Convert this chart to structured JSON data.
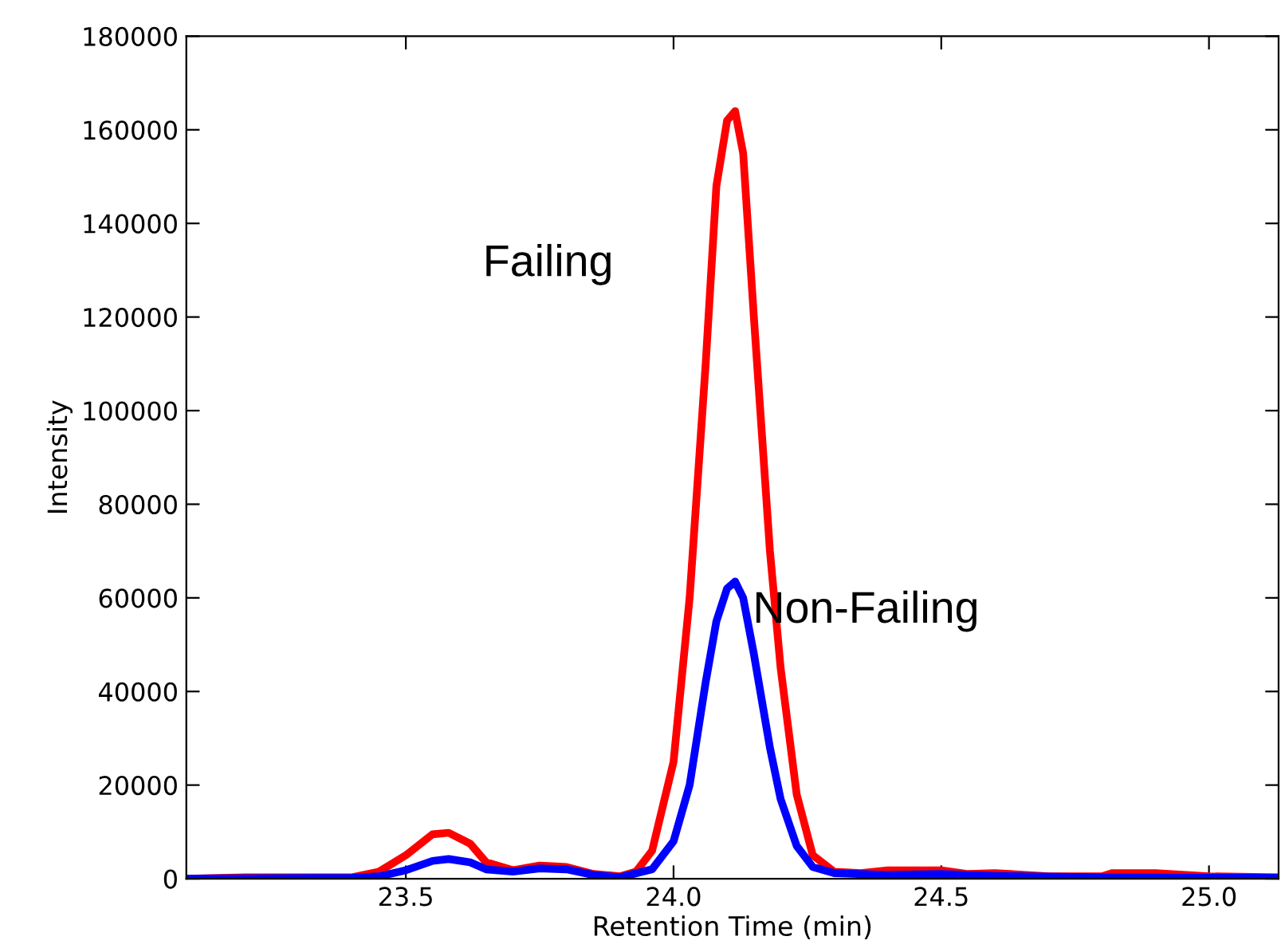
{
  "chart_data": {
    "type": "line",
    "xlabel": "Retention Time (min)",
    "ylabel": "Intensity",
    "xlim": [
      23.09,
      25.13
    ],
    "ylim": [
      0,
      180000
    ],
    "xticks": [
      23.5,
      {
        "value": 24.0,
        "label": "24.0"
      },
      24.5,
      {
        "value": 25.0,
        "label": "25.0"
      }
    ],
    "yticks": [
      0,
      20000,
      40000,
      60000,
      80000,
      100000,
      120000,
      140000,
      160000,
      180000
    ],
    "grid": false,
    "legend": false,
    "marker": "none",
    "line_style": "solid",
    "series": [
      {
        "name": "Failing",
        "color": "#ff0000",
        "x": [
          23.09,
          23.2,
          23.4,
          23.45,
          23.5,
          23.55,
          23.58,
          23.62,
          23.65,
          23.7,
          23.75,
          23.8,
          23.85,
          23.9,
          23.93,
          23.96,
          24.0,
          24.03,
          24.06,
          24.08,
          24.1,
          24.115,
          24.13,
          24.15,
          24.18,
          24.2,
          24.23,
          24.26,
          24.3,
          24.35,
          24.4,
          24.5,
          24.55,
          24.6,
          24.7,
          24.8,
          24.82,
          24.9,
          25.0,
          25.13
        ],
        "values": [
          0,
          300,
          300,
          1500,
          5000,
          9500,
          9800,
          7500,
          3500,
          1800,
          2800,
          2500,
          1000,
          500,
          1500,
          6000,
          25000,
          60000,
          110000,
          148000,
          162000,
          164000,
          155000,
          120000,
          70000,
          45000,
          18000,
          5000,
          1500,
          1200,
          1800,
          1800,
          1000,
          1200,
          500,
          500,
          1200,
          1200,
          500,
          300
        ]
      },
      {
        "name": "Non-Failing",
        "color": "#0000ff",
        "x": [
          23.09,
          23.4,
          23.45,
          23.5,
          23.55,
          23.58,
          23.62,
          23.65,
          23.7,
          23.75,
          23.8,
          23.85,
          23.9,
          23.96,
          24.0,
          24.03,
          24.06,
          24.08,
          24.1,
          24.115,
          24.13,
          24.15,
          24.18,
          24.2,
          24.23,
          24.26,
          24.3,
          24.4,
          24.5,
          24.6,
          24.8,
          25.0,
          25.13
        ],
        "values": [
          0,
          200,
          500,
          1800,
          3800,
          4200,
          3500,
          2000,
          1500,
          2200,
          2000,
          800,
          300,
          2000,
          8000,
          20000,
          42000,
          55000,
          62000,
          63500,
          60000,
          48000,
          28000,
          17000,
          7000,
          2500,
          1200,
          800,
          1000,
          600,
          300,
          200,
          200
        ]
      }
    ]
  }
}
